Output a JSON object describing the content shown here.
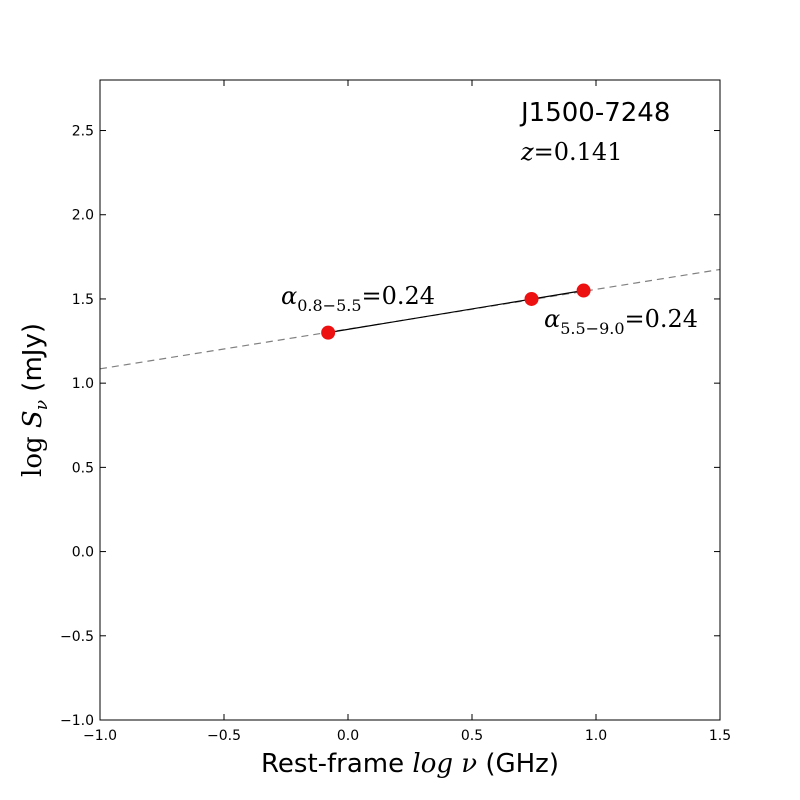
{
  "chart_data": {
    "type": "scatter",
    "xlabel": {
      "prefix": "Rest-frame ",
      "math": "log ν",
      "suffix": " (GHz)"
    },
    "ylabel": {
      "math_log": "log ",
      "math_var": "S",
      "sub": "ν",
      "suffix": " (mJy)"
    },
    "xlim": [
      -1.0,
      1.5
    ],
    "ylim": [
      -1.0,
      2.8
    ],
    "xticks": [
      -1.0,
      -0.5,
      0.0,
      0.5,
      1.0,
      1.5
    ],
    "xtick_labels": [
      "−1.0",
      "−0.5",
      "0.0",
      "0.5",
      "1.0",
      "1.5"
    ],
    "yticks": [
      -1.0,
      -0.5,
      0.0,
      0.5,
      1.0,
      1.5,
      2.0,
      2.5
    ],
    "ytick_labels": [
      "−1.0",
      "−0.5",
      "0.0",
      "0.5",
      "1.0",
      "1.5",
      "2.0",
      "2.5"
    ],
    "grid": false,
    "points": {
      "x": [
        -0.08,
        0.74,
        0.95
      ],
      "y": [
        1.3,
        1.5,
        1.55
      ],
      "color": "#ee1111"
    },
    "fit_segment": {
      "x": [
        -0.08,
        0.95
      ],
      "y": [
        1.3,
        1.55
      ],
      "color": "#000000"
    },
    "extrapolation": {
      "x": [
        -1.0,
        1.5
      ],
      "y": [
        1.085,
        1.675
      ],
      "color": "#808080",
      "style": "dashed"
    },
    "source_name": "J1500-7248",
    "redshift": {
      "var": "z",
      "eq": "=",
      "value": "0.141"
    },
    "annotations": [
      {
        "symbol": "α",
        "sub": "0.8−5.5",
        "text": "=0.24"
      },
      {
        "symbol": "α",
        "sub": "5.5−9.0",
        "text": "=0.24"
      }
    ]
  }
}
